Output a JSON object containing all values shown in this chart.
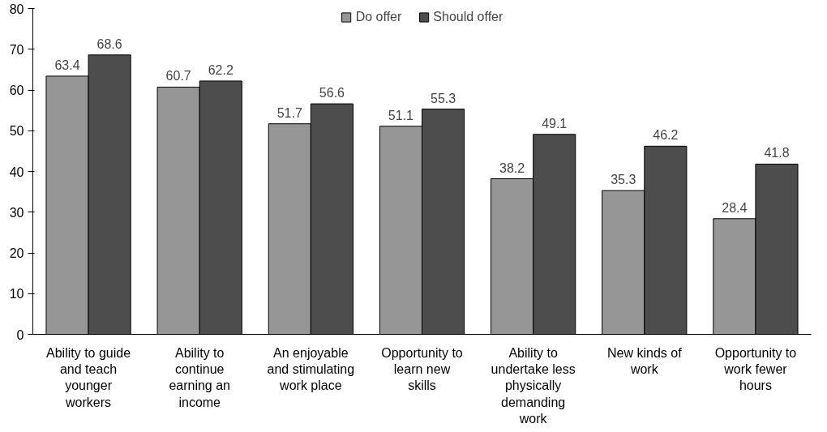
{
  "chart_data": {
    "type": "bar",
    "categories": [
      "Ability to guide\nand teach\nyounger\nworkers",
      "Ability to\ncontinue\nearning an\nincome",
      "An enjoyable\nand stimulating\nwork place",
      "Opportunity to\nlearn new\nskills",
      "Ability to\nundertake less\nphysically\ndemanding\nwork",
      "New kinds of\nwork",
      "Opportunity to\nwork fewer\nhours"
    ],
    "series": [
      {
        "name": "Do offer",
        "color": "#969696",
        "values": [
          63.4,
          60.7,
          51.7,
          51.1,
          38.2,
          35.3,
          28.4
        ]
      },
      {
        "name": "Should offer",
        "color": "#4d4d4d",
        "values": [
          68.6,
          62.2,
          56.6,
          55.3,
          49.1,
          46.2,
          41.8
        ]
      }
    ],
    "ylim": [
      0,
      80
    ],
    "yticks": [
      0,
      10,
      20,
      30,
      40,
      50,
      60,
      70,
      80
    ],
    "grid": false,
    "legend": "top",
    "data_labels": true
  }
}
